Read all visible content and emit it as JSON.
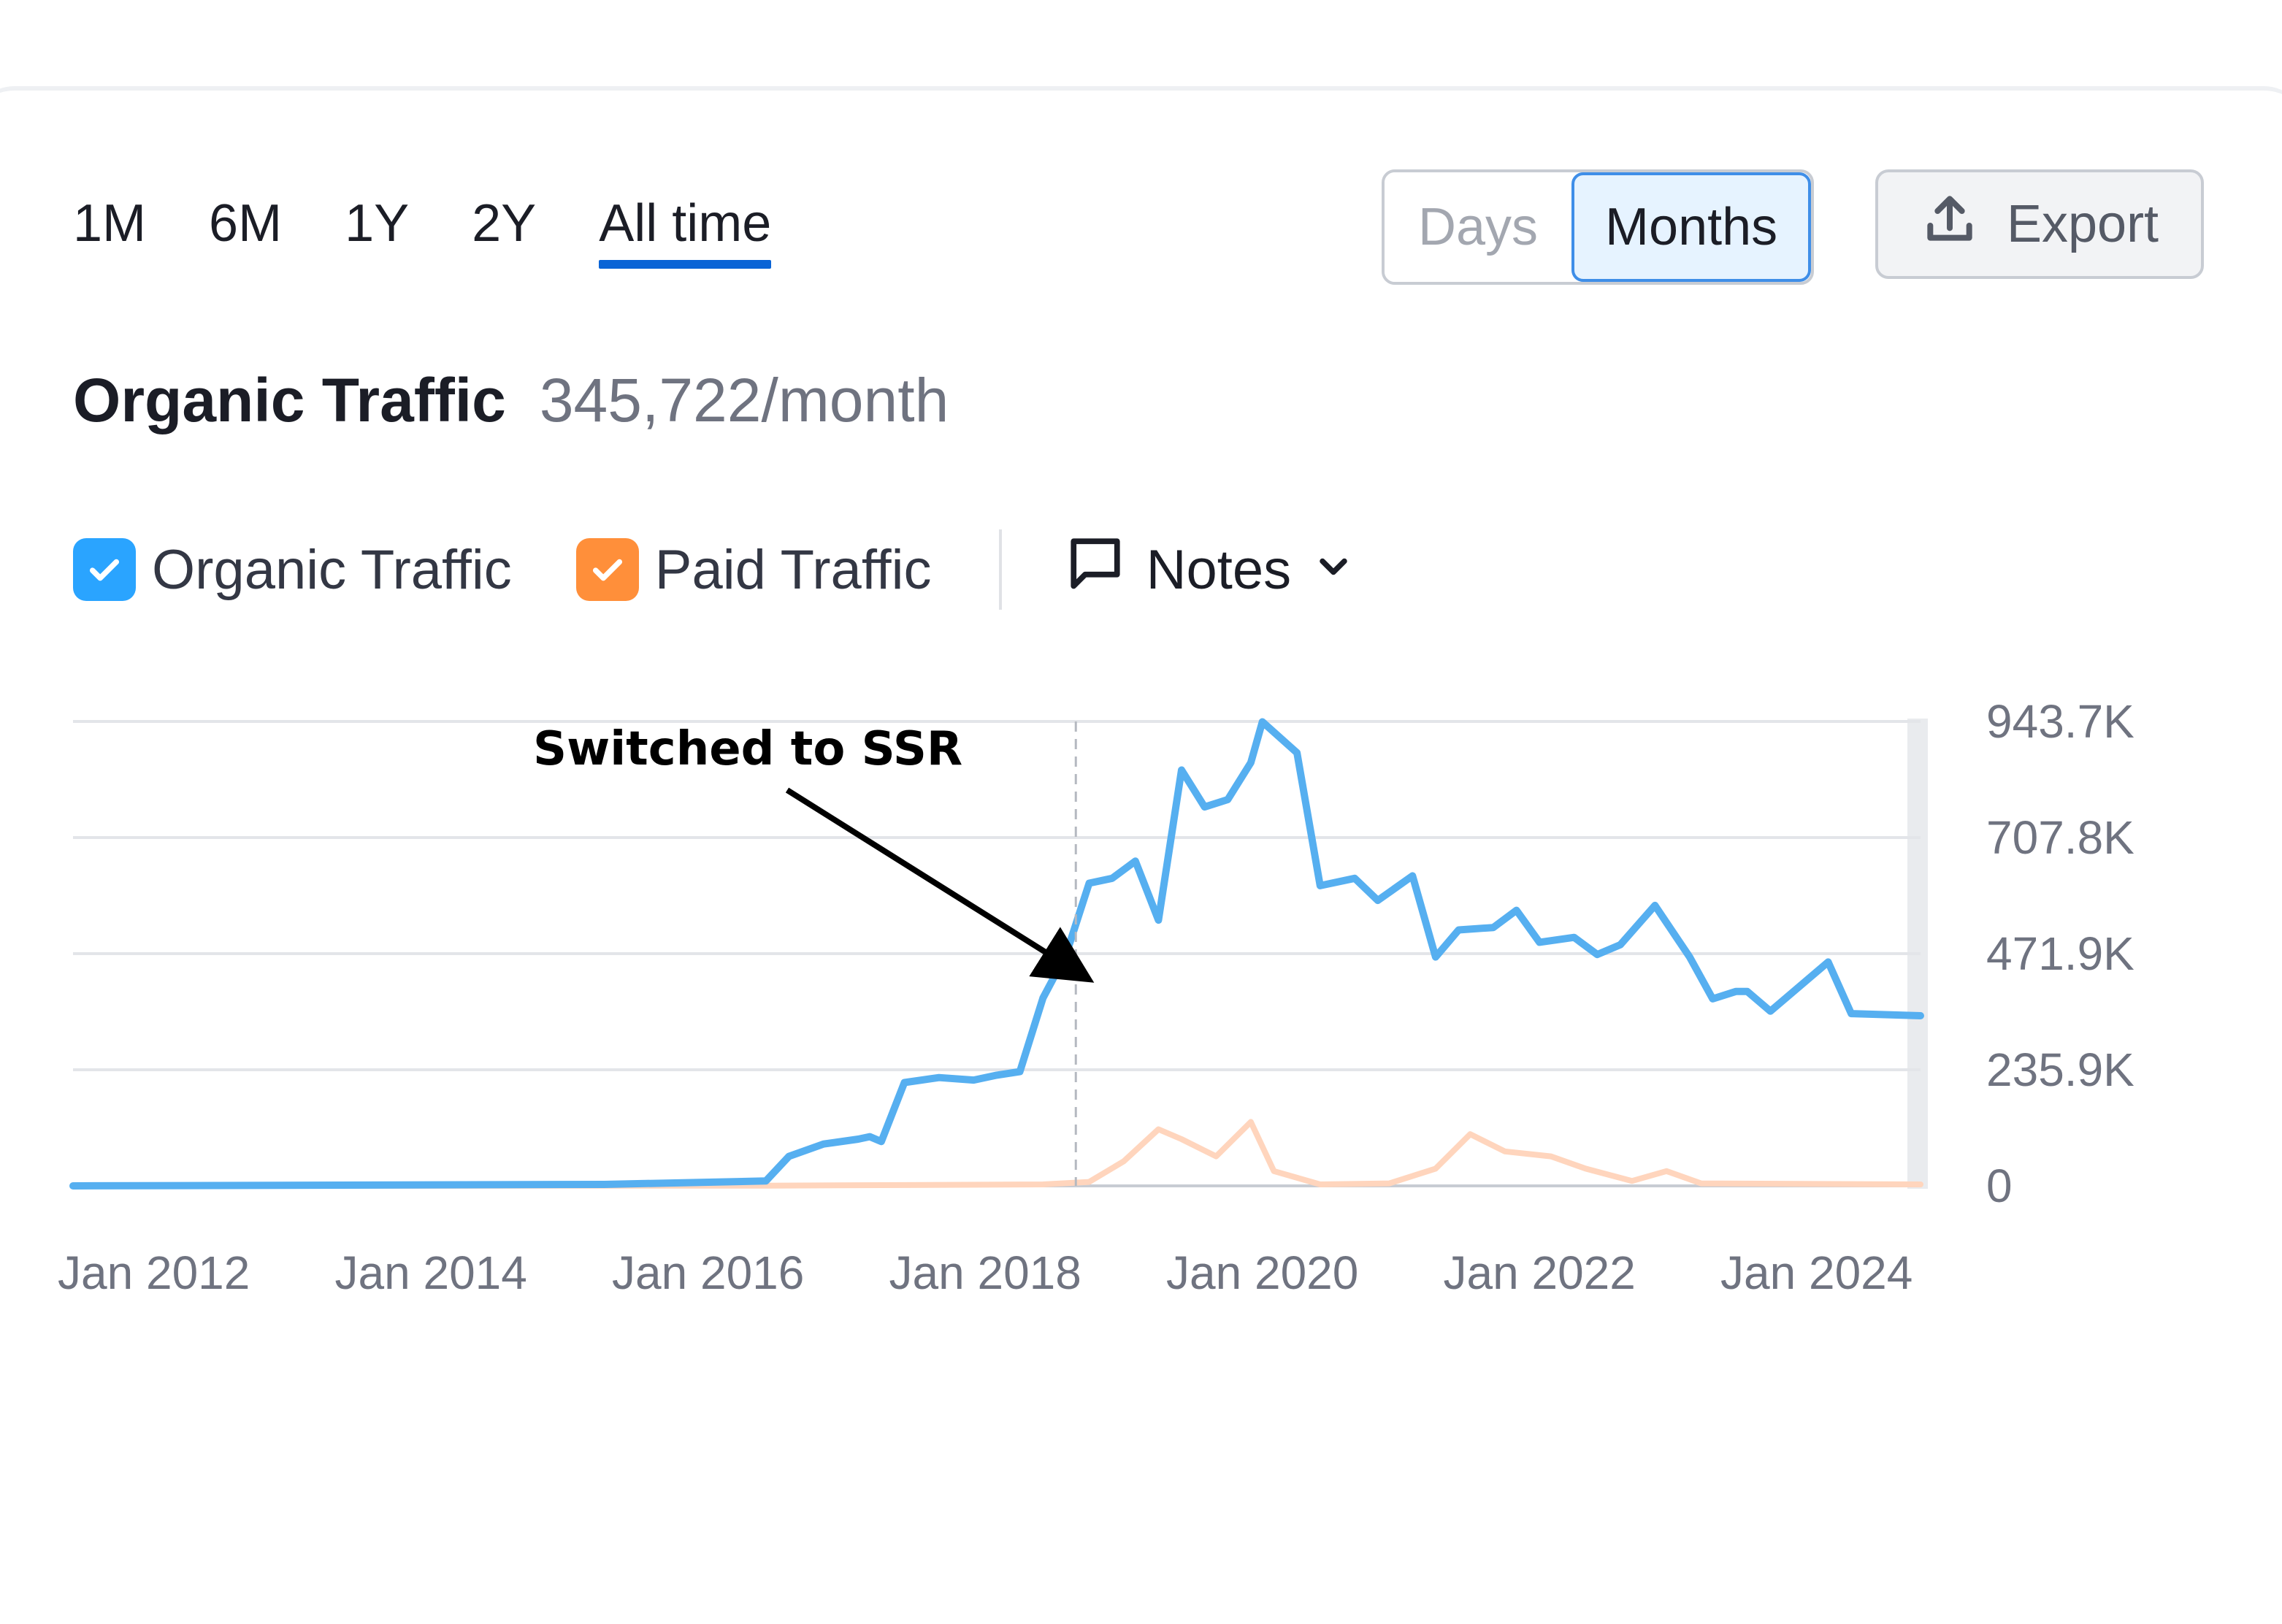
{
  "periods": [
    {
      "label": "1M"
    },
    {
      "label": "6M"
    },
    {
      "label": "1Y"
    },
    {
      "label": "2Y"
    },
    {
      "label": "All time"
    }
  ],
  "active_period": "All time",
  "granularity": {
    "days_label": "Days",
    "months_label": "Months",
    "selected": "Months"
  },
  "export_label": "Export",
  "header": {
    "title": "Organic Traffic",
    "value": "345,722/month"
  },
  "legend": {
    "organic_label": "Organic Traffic",
    "paid_label": "Paid Traffic",
    "notes_label": "Notes"
  },
  "colors": {
    "organic": "#2aa4ff",
    "paid": "#ff8f3a",
    "organic_line": "#56aff0",
    "paid_line": "#ffd5bd",
    "accent": "#0a64d6"
  },
  "icons": {
    "checkbox": "check-icon",
    "notes": "comment-icon",
    "dropdown": "chevron-down-icon",
    "export": "upload-icon"
  },
  "chart_data": {
    "type": "line",
    "title": "",
    "xlabel": "",
    "ylabel": "",
    "x_ticks": [
      "Jan 2012",
      "Jan 2014",
      "Jan 2016",
      "Jan 2018",
      "Jan 2020",
      "Jan 2022",
      "Jan 2024"
    ],
    "y_ticks": [
      "0",
      "235.9K",
      "471.9K",
      "707.8K",
      "943.7K"
    ],
    "ylim": [
      0,
      943700
    ],
    "xlim": [
      "2011-06",
      "2024-10"
    ],
    "grid": true,
    "annotation": {
      "text": "Switched to SSR",
      "x": "2018-06"
    },
    "series": [
      {
        "name": "Organic Traffic",
        "points": [
          [
            "2011-06",
            0
          ],
          [
            "2015-04",
            3000
          ],
          [
            "2016-06",
            10000
          ],
          [
            "2016-08",
            60000
          ],
          [
            "2016-11",
            85000
          ],
          [
            "2017-02",
            95000
          ],
          [
            "2017-03",
            100000
          ],
          [
            "2017-04",
            90000
          ],
          [
            "2017-06",
            210000
          ],
          [
            "2017-09",
            220000
          ],
          [
            "2017-12",
            215000
          ],
          [
            "2018-02",
            225000
          ],
          [
            "2018-04",
            232000
          ],
          [
            "2018-06",
            382000
          ],
          [
            "2018-08",
            470000
          ],
          [
            "2018-10",
            615000
          ],
          [
            "2018-12",
            625000
          ],
          [
            "2019-02",
            660000
          ],
          [
            "2019-04",
            540000
          ],
          [
            "2019-06",
            845000
          ],
          [
            "2019-08",
            770000
          ],
          [
            "2019-10",
            785000
          ],
          [
            "2019-12",
            860000
          ],
          [
            "2020-01",
            943000
          ],
          [
            "2020-04",
            880000
          ],
          [
            "2020-06",
            610000
          ],
          [
            "2020-09",
            625000
          ],
          [
            "2020-11",
            580000
          ],
          [
            "2021-02",
            630000
          ],
          [
            "2021-04",
            465000
          ],
          [
            "2021-06",
            520000
          ],
          [
            "2021-09",
            525000
          ],
          [
            "2021-11",
            560000
          ],
          [
            "2022-01",
            495000
          ],
          [
            "2022-04",
            505000
          ],
          [
            "2022-06",
            470000
          ],
          [
            "2022-08",
            490000
          ],
          [
            "2022-11",
            570000
          ],
          [
            "2023-02",
            465000
          ],
          [
            "2023-04",
            380000
          ],
          [
            "2023-06",
            395000
          ],
          [
            "2023-07",
            395000
          ],
          [
            "2023-09",
            355000
          ],
          [
            "2023-11",
            395000
          ],
          [
            "2024-02",
            455000
          ],
          [
            "2024-04",
            350000
          ],
          [
            "2024-10",
            345722
          ]
        ]
      },
      {
        "name": "Paid Traffic",
        "points": [
          [
            "2011-06",
            0
          ],
          [
            "2016-06",
            500
          ],
          [
            "2018-06",
            3000
          ],
          [
            "2018-10",
            8000
          ],
          [
            "2019-01",
            50000
          ],
          [
            "2019-04",
            115000
          ],
          [
            "2019-06",
            95000
          ],
          [
            "2019-09",
            60000
          ],
          [
            "2019-12",
            130000
          ],
          [
            "2020-02",
            30000
          ],
          [
            "2020-06",
            3000
          ],
          [
            "2020-12",
            5000
          ],
          [
            "2021-04",
            35000
          ],
          [
            "2021-07",
            105000
          ],
          [
            "2021-10",
            70000
          ],
          [
            "2022-02",
            60000
          ],
          [
            "2022-05",
            35000
          ],
          [
            "2022-09",
            10000
          ],
          [
            "2022-12",
            30000
          ],
          [
            "2023-03",
            5000
          ],
          [
            "2024-10",
            3000
          ]
        ]
      }
    ]
  }
}
